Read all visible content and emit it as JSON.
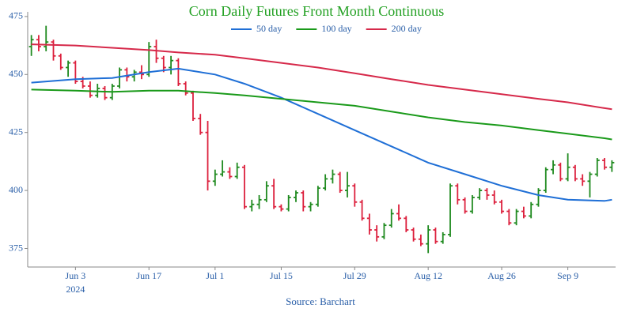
{
  "chart_data": {
    "type": "ohlc",
    "title": "Corn Daily Futures Front Month Continuous",
    "source": "Source: Barchart",
    "x": [
      "2024-05-23",
      "2024-05-24",
      "2024-05-28",
      "2024-05-29",
      "2024-05-30",
      "2024-05-31",
      "2024-06-03",
      "2024-06-04",
      "2024-06-05",
      "2024-06-06",
      "2024-06-07",
      "2024-06-10",
      "2024-06-11",
      "2024-06-12",
      "2024-06-13",
      "2024-06-14",
      "2024-06-17",
      "2024-06-18",
      "2024-06-20",
      "2024-06-21",
      "2024-06-24",
      "2024-06-25",
      "2024-06-26",
      "2024-06-27",
      "2024-06-28",
      "2024-07-01",
      "2024-07-02",
      "2024-07-03",
      "2024-07-05",
      "2024-07-08",
      "2024-07-09",
      "2024-07-10",
      "2024-07-11",
      "2024-07-12",
      "2024-07-15",
      "2024-07-16",
      "2024-07-17",
      "2024-07-18",
      "2024-07-19",
      "2024-07-22",
      "2024-07-23",
      "2024-07-24",
      "2024-07-25",
      "2024-07-26",
      "2024-07-29",
      "2024-07-30",
      "2024-07-31",
      "2024-08-01",
      "2024-08-02",
      "2024-08-05",
      "2024-08-06",
      "2024-08-07",
      "2024-08-08",
      "2024-08-09",
      "2024-08-12",
      "2024-08-13",
      "2024-08-14",
      "2024-08-15",
      "2024-08-16",
      "2024-08-19",
      "2024-08-20",
      "2024-08-21",
      "2024-08-22",
      "2024-08-23",
      "2024-08-26",
      "2024-08-27",
      "2024-08-28",
      "2024-08-29",
      "2024-08-30",
      "2024-09-03",
      "2024-09-04",
      "2024-09-05",
      "2024-09-06",
      "2024-09-09",
      "2024-09-10",
      "2024-09-11",
      "2024-09-12",
      "2024-09-13",
      "2024-09-16",
      "2024-09-17"
    ],
    "open": [
      462,
      465,
      462,
      464,
      458,
      453,
      455,
      447,
      445,
      441,
      444,
      440,
      445,
      452,
      449,
      451,
      450,
      462,
      457,
      453,
      456,
      446,
      442,
      431,
      425,
      404,
      407,
      408,
      406,
      410,
      393,
      394,
      396,
      402,
      393,
      392,
      397,
      399,
      393,
      394,
      401,
      405,
      407,
      400,
      402,
      395,
      388,
      383,
      380,
      385,
      390,
      388,
      383,
      379,
      377,
      383,
      378,
      381,
      402,
      396,
      391,
      397,
      400,
      398,
      395,
      391,
      386,
      391,
      389,
      394,
      400,
      409,
      411,
      405,
      410,
      405,
      404,
      407,
      413,
      410
    ],
    "high": [
      467,
      467,
      471,
      465,
      459,
      456,
      456,
      449,
      447,
      446,
      445,
      446,
      453,
      453,
      452,
      454,
      464,
      465,
      458,
      458,
      457,
      447,
      443,
      433,
      430,
      409,
      413,
      410,
      412,
      411,
      396,
      398,
      404,
      405,
      394,
      398,
      400,
      400,
      395,
      402,
      407,
      409,
      408,
      408,
      403,
      396,
      390,
      385,
      386,
      392,
      394,
      389,
      384,
      381,
      385,
      384,
      382,
      403,
      403,
      397,
      398,
      401,
      401,
      400,
      396,
      392,
      392,
      393,
      395,
      401,
      410,
      413,
      412,
      416,
      411,
      407,
      408,
      414,
      414,
      413
    ],
    "low": [
      458,
      460,
      460,
      456,
      452,
      449,
      446,
      444,
      440,
      440,
      439,
      439,
      444,
      447,
      447,
      448,
      449,
      455,
      451,
      450,
      445,
      441,
      430,
      424,
      400,
      402,
      406,
      405,
      405,
      392,
      391,
      392,
      395,
      392,
      391,
      391,
      395,
      391,
      391,
      393,
      400,
      403,
      399,
      397,
      393,
      387,
      381,
      378,
      379,
      384,
      387,
      382,
      378,
      376,
      373,
      377,
      377,
      380,
      394,
      390,
      390,
      396,
      396,
      394,
      390,
      385,
      385,
      388,
      388,
      393,
      399,
      407,
      404,
      404,
      404,
      402,
      397,
      406,
      409,
      408
    ],
    "close": [
      465,
      462,
      464,
      458,
      453,
      455,
      447,
      445,
      441,
      444,
      440,
      445,
      452,
      449,
      451,
      450,
      462,
      457,
      453,
      456,
      446,
      442,
      431,
      425,
      404,
      407,
      408,
      406,
      410,
      393,
      394,
      396,
      402,
      393,
      392,
      397,
      399,
      393,
      394,
      401,
      405,
      407,
      400,
      402,
      395,
      388,
      383,
      380,
      385,
      390,
      388,
      383,
      379,
      377,
      383,
      378,
      381,
      402,
      396,
      391,
      397,
      400,
      398,
      395,
      391,
      386,
      391,
      389,
      394,
      400,
      409,
      411,
      405,
      410,
      405,
      404,
      407,
      413,
      410,
      412
    ],
    "increasing_color": "#1f8a1f",
    "decreasing_color": "#dc1f3c",
    "series": [
      {
        "name": "50 day",
        "color": "#1f6fd6",
        "x": [
          "2024-05-23",
          "2024-06-03",
          "2024-06-10",
          "2024-06-17",
          "2024-06-24",
          "2024-07-01",
          "2024-07-08",
          "2024-07-15",
          "2024-07-22",
          "2024-07-29",
          "2024-08-05",
          "2024-08-12",
          "2024-08-19",
          "2024-08-26",
          "2024-09-03",
          "2024-09-09",
          "2024-09-16",
          "2024-09-17"
        ],
        "values": [
          446.5,
          448,
          448.5,
          451,
          452.5,
          450,
          446,
          440,
          433,
          426,
          419,
          412,
          407,
          402,
          398,
          396,
          395.5,
          396
        ]
      },
      {
        "name": "100 day",
        "color": "#1a9a1a",
        "x": [
          "2024-05-23",
          "2024-06-03",
          "2024-06-10",
          "2024-06-17",
          "2024-06-24",
          "2024-07-01",
          "2024-07-08",
          "2024-07-15",
          "2024-07-22",
          "2024-07-29",
          "2024-08-05",
          "2024-08-12",
          "2024-08-19",
          "2024-08-26",
          "2024-09-03",
          "2024-09-09",
          "2024-09-16",
          "2024-09-17"
        ],
        "values": [
          443.5,
          443,
          442.5,
          443,
          443,
          442,
          441,
          439.5,
          438,
          436.5,
          434,
          431.5,
          429.5,
          428,
          426,
          424.5,
          422.5,
          422
        ]
      },
      {
        "name": "200 day",
        "color": "#d6294a",
        "x": [
          "2024-05-23",
          "2024-06-03",
          "2024-06-10",
          "2024-06-17",
          "2024-06-24",
          "2024-07-01",
          "2024-07-08",
          "2024-07-15",
          "2024-07-22",
          "2024-07-29",
          "2024-08-05",
          "2024-08-12",
          "2024-08-19",
          "2024-08-26",
          "2024-09-03",
          "2024-09-09",
          "2024-09-16",
          "2024-09-17"
        ],
        "values": [
          463,
          462.5,
          461.5,
          460.5,
          459.5,
          458.5,
          457,
          455,
          453,
          450.5,
          448,
          445.5,
          443.5,
          441.5,
          439.5,
          438,
          435.5,
          435
        ]
      }
    ],
    "ylim": [
      367,
      477
    ],
    "yticks": [
      375,
      400,
      425,
      450,
      475
    ],
    "xticks": [
      {
        "value": "2024-06-03",
        "label": "Jun 3"
      },
      {
        "value": "2024-06-17",
        "label": "Jun 17"
      },
      {
        "value": "2024-07-01",
        "label": "Jul 1"
      },
      {
        "value": "2024-07-15",
        "label": "Jul 15"
      },
      {
        "value": "2024-07-29",
        "label": "Jul 29"
      },
      {
        "value": "2024-08-12",
        "label": "Aug 12"
      },
      {
        "value": "2024-08-26",
        "label": "Aug 26"
      },
      {
        "value": "2024-09-09",
        "label": "Sep 9"
      }
    ],
    "x_year": "2024",
    "grid": false,
    "legend": "top"
  }
}
